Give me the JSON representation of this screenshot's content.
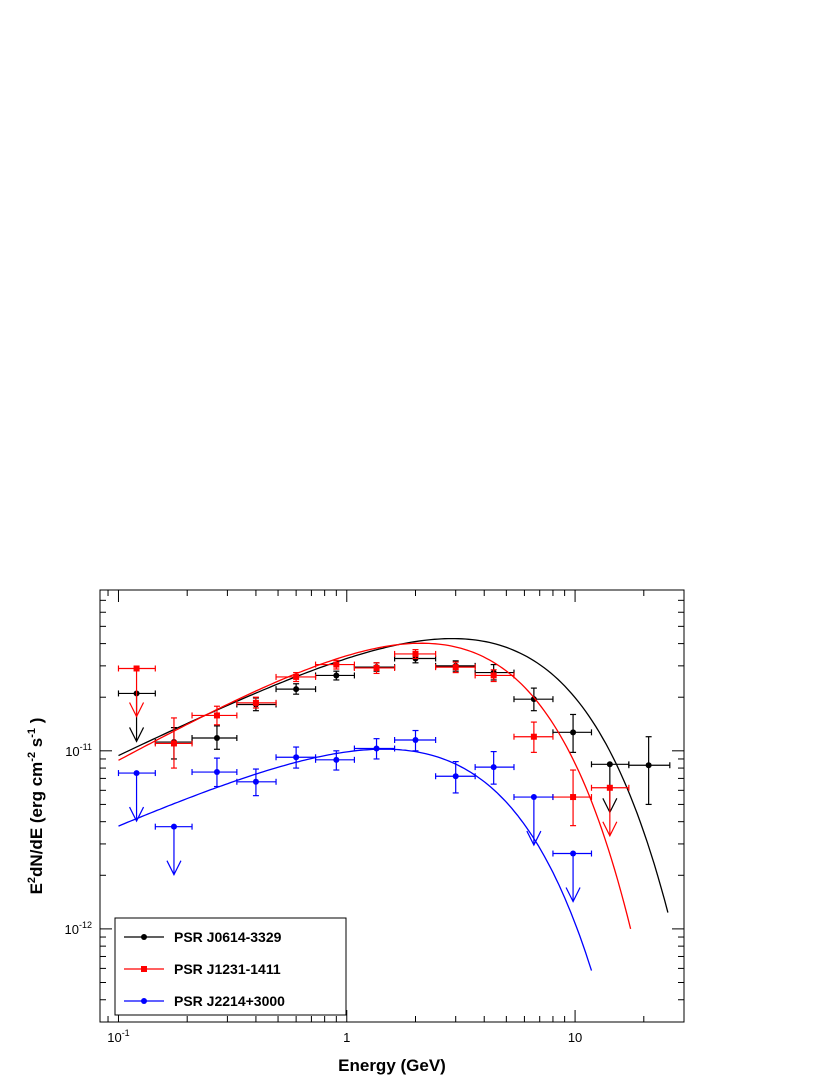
{
  "chart_data": {
    "type": "scatter",
    "xlabel": "Energy (GeV)",
    "ylabel": {
      "base": "E",
      "base_sup": "2",
      "rest": "dN/dE (erg cm",
      "sup1": "-2",
      "mid": " s",
      "sup2": "-1",
      "end": " )"
    },
    "xscale": "log",
    "yscale": "log",
    "xlim": [
      0.083,
      30
    ],
    "ylim": [
      3e-13,
      8e-11
    ],
    "x_ticks": [
      {
        "value": 0.1,
        "base": "10",
        "sup": "-1"
      },
      {
        "value": 1,
        "base": "1",
        "sup": ""
      },
      {
        "value": 10,
        "base": "10",
        "sup": ""
      }
    ],
    "y_ticks": [
      {
        "value": 1e-12,
        "base": "10",
        "sup": "-12"
      },
      {
        "value": 1e-11,
        "base": "10",
        "sup": "-11"
      }
    ],
    "grid": false,
    "legend_position": "bottom-left",
    "series": [
      {
        "name": "PSR J0614-3329",
        "color": "#000000",
        "marker": "circle",
        "points": [
          {
            "x": 0.12,
            "xlo": 0.1,
            "xhi": 0.145,
            "y": 2.1e-11,
            "ul": true
          },
          {
            "x": 0.175,
            "xlo": 0.145,
            "xhi": 0.21,
            "y": 1.12e-11,
            "ylo": 9e-12,
            "yhi": 1.35e-11
          },
          {
            "x": 0.27,
            "xlo": 0.21,
            "xhi": 0.33,
            "y": 1.18e-11,
            "ylo": 1.02e-11,
            "yhi": 1.38e-11
          },
          {
            "x": 0.4,
            "xlo": 0.33,
            "xhi": 0.49,
            "y": 1.82e-11,
            "ylo": 1.68e-11,
            "yhi": 1.98e-11
          },
          {
            "x": 0.6,
            "xlo": 0.49,
            "xhi": 0.73,
            "y": 2.22e-11,
            "ylo": 2.08e-11,
            "yhi": 2.38e-11
          },
          {
            "x": 0.9,
            "xlo": 0.73,
            "xhi": 1.08,
            "y": 2.65e-11,
            "ylo": 2.5e-11,
            "yhi": 2.8e-11
          },
          {
            "x": 1.35,
            "xlo": 1.08,
            "xhi": 1.62,
            "y": 2.95e-11,
            "ylo": 2.8e-11,
            "yhi": 3.12e-11
          },
          {
            "x": 2.0,
            "xlo": 1.62,
            "xhi": 2.45,
            "y": 3.3e-11,
            "ylo": 3.12e-11,
            "yhi": 3.5e-11
          },
          {
            "x": 3.0,
            "xlo": 2.45,
            "xhi": 3.65,
            "y": 3e-11,
            "ylo": 2.8e-11,
            "yhi": 3.2e-11
          },
          {
            "x": 4.4,
            "xlo": 3.65,
            "xhi": 5.4,
            "y": 2.75e-11,
            "ylo": 2.5e-11,
            "yhi": 3.05e-11
          },
          {
            "x": 6.6,
            "xlo": 5.4,
            "xhi": 8.0,
            "y": 1.95e-11,
            "ylo": 1.68e-11,
            "yhi": 2.25e-11
          },
          {
            "x": 9.8,
            "xlo": 8.0,
            "xhi": 11.8,
            "y": 1.27e-11,
            "ylo": 9.8e-12,
            "yhi": 1.6e-11
          },
          {
            "x": 14.2,
            "xlo": 11.8,
            "xhi": 17.2,
            "y": 8.4e-12,
            "ul": true
          },
          {
            "x": 21.0,
            "xlo": 17.2,
            "xhi": 26.0,
            "y": 8.3e-12,
            "ylo": 5e-12,
            "yhi": 1.2e-11
          }
        ],
        "model": {
          "norm": 4.1e-11,
          "index": 1.37,
          "ecut": 4.6,
          "emin": 0.1,
          "emax": 25.5
        }
      },
      {
        "name": "PSR J1231-1411",
        "color": "#ff0000",
        "marker": "square",
        "points": [
          {
            "x": 0.12,
            "xlo": 0.1,
            "xhi": 0.145,
            "y": 2.9e-11,
            "ul": true
          },
          {
            "x": 0.175,
            "xlo": 0.145,
            "xhi": 0.21,
            "y": 1.1e-11,
            "ylo": 8e-12,
            "yhi": 1.53e-11
          },
          {
            "x": 0.27,
            "xlo": 0.21,
            "xhi": 0.33,
            "y": 1.58e-11,
            "ylo": 1.4e-11,
            "yhi": 1.78e-11
          },
          {
            "x": 0.4,
            "xlo": 0.33,
            "xhi": 0.49,
            "y": 1.86e-11,
            "ylo": 1.74e-11,
            "yhi": 2e-11
          },
          {
            "x": 0.6,
            "xlo": 0.49,
            "xhi": 0.73,
            "y": 2.6e-11,
            "ylo": 2.45e-11,
            "yhi": 2.75e-11
          },
          {
            "x": 0.9,
            "xlo": 0.73,
            "xhi": 1.08,
            "y": 3.05e-11,
            "ylo": 2.88e-11,
            "yhi": 3.22e-11
          },
          {
            "x": 1.35,
            "xlo": 1.08,
            "xhi": 1.62,
            "y": 2.92e-11,
            "ylo": 2.72e-11,
            "yhi": 3.12e-11
          },
          {
            "x": 2.0,
            "xlo": 1.62,
            "xhi": 2.45,
            "y": 3.5e-11,
            "ylo": 3.3e-11,
            "yhi": 3.7e-11
          },
          {
            "x": 3.0,
            "xlo": 2.45,
            "xhi": 3.65,
            "y": 2.95e-11,
            "ylo": 2.75e-11,
            "yhi": 3.15e-11
          },
          {
            "x": 4.4,
            "xlo": 3.65,
            "xhi": 5.4,
            "y": 2.65e-11,
            "ylo": 2.45e-11,
            "yhi": 2.85e-11
          },
          {
            "x": 6.6,
            "xlo": 5.4,
            "xhi": 8.0,
            "y": 1.2e-11,
            "ylo": 9.8e-12,
            "yhi": 1.45e-11
          },
          {
            "x": 9.8,
            "xlo": 8.0,
            "xhi": 11.8,
            "y": 5.5e-12,
            "ylo": 3.8e-12,
            "yhi": 7.8e-12
          },
          {
            "x": 14.2,
            "xlo": 11.8,
            "xhi": 17.2,
            "y": 6.2e-12,
            "ul": true
          }
        ],
        "model": {
          "norm": 4.8e-11,
          "index": 1.28,
          "ecut": 2.95,
          "emin": 0.1,
          "emax": 17.5
        }
      },
      {
        "name": "PSR J2214+3000",
        "color": "#0000ff",
        "marker": "circle",
        "points": [
          {
            "x": 0.12,
            "xlo": 0.1,
            "xhi": 0.145,
            "y": 7.5e-12,
            "ul": true
          },
          {
            "x": 0.175,
            "xlo": 0.145,
            "xhi": 0.21,
            "y": 3.75e-12,
            "ul": true
          },
          {
            "x": 0.27,
            "xlo": 0.21,
            "xhi": 0.33,
            "y": 7.6e-12,
            "ylo": 6.3e-12,
            "yhi": 9.1e-12
          },
          {
            "x": 0.4,
            "xlo": 0.33,
            "xhi": 0.49,
            "y": 6.7e-12,
            "ylo": 5.6e-12,
            "yhi": 7.9e-12
          },
          {
            "x": 0.6,
            "xlo": 0.49,
            "xhi": 0.73,
            "y": 9.2e-12,
            "ylo": 8e-12,
            "yhi": 1.05e-11
          },
          {
            "x": 0.9,
            "xlo": 0.73,
            "xhi": 1.08,
            "y": 8.9e-12,
            "ylo": 7.8e-12,
            "yhi": 1e-11
          },
          {
            "x": 1.35,
            "xlo": 1.08,
            "xhi": 1.62,
            "y": 1.03e-11,
            "ylo": 9e-12,
            "yhi": 1.17e-11
          },
          {
            "x": 2.0,
            "xlo": 1.62,
            "xhi": 2.45,
            "y": 1.15e-11,
            "ylo": 1e-11,
            "yhi": 1.3e-11
          },
          {
            "x": 3.0,
            "xlo": 2.45,
            "xhi": 3.65,
            "y": 7.2e-12,
            "ylo": 5.8e-12,
            "yhi": 8.7e-12
          },
          {
            "x": 4.4,
            "xlo": 3.65,
            "xhi": 5.4,
            "y": 8.1e-12,
            "ylo": 6.5e-12,
            "yhi": 9.9e-12
          },
          {
            "x": 6.6,
            "xlo": 5.4,
            "xhi": 8.0,
            "y": 5.5e-12,
            "ul": true
          },
          {
            "x": 9.8,
            "xlo": 8.0,
            "xhi": 11.8,
            "y": 2.65e-12,
            "ul": true
          }
        ],
        "model": {
          "norm": 1.46e-11,
          "index": 1.43,
          "ecut": 2.55,
          "emin": 0.1,
          "emax": 11.8
        }
      }
    ]
  }
}
